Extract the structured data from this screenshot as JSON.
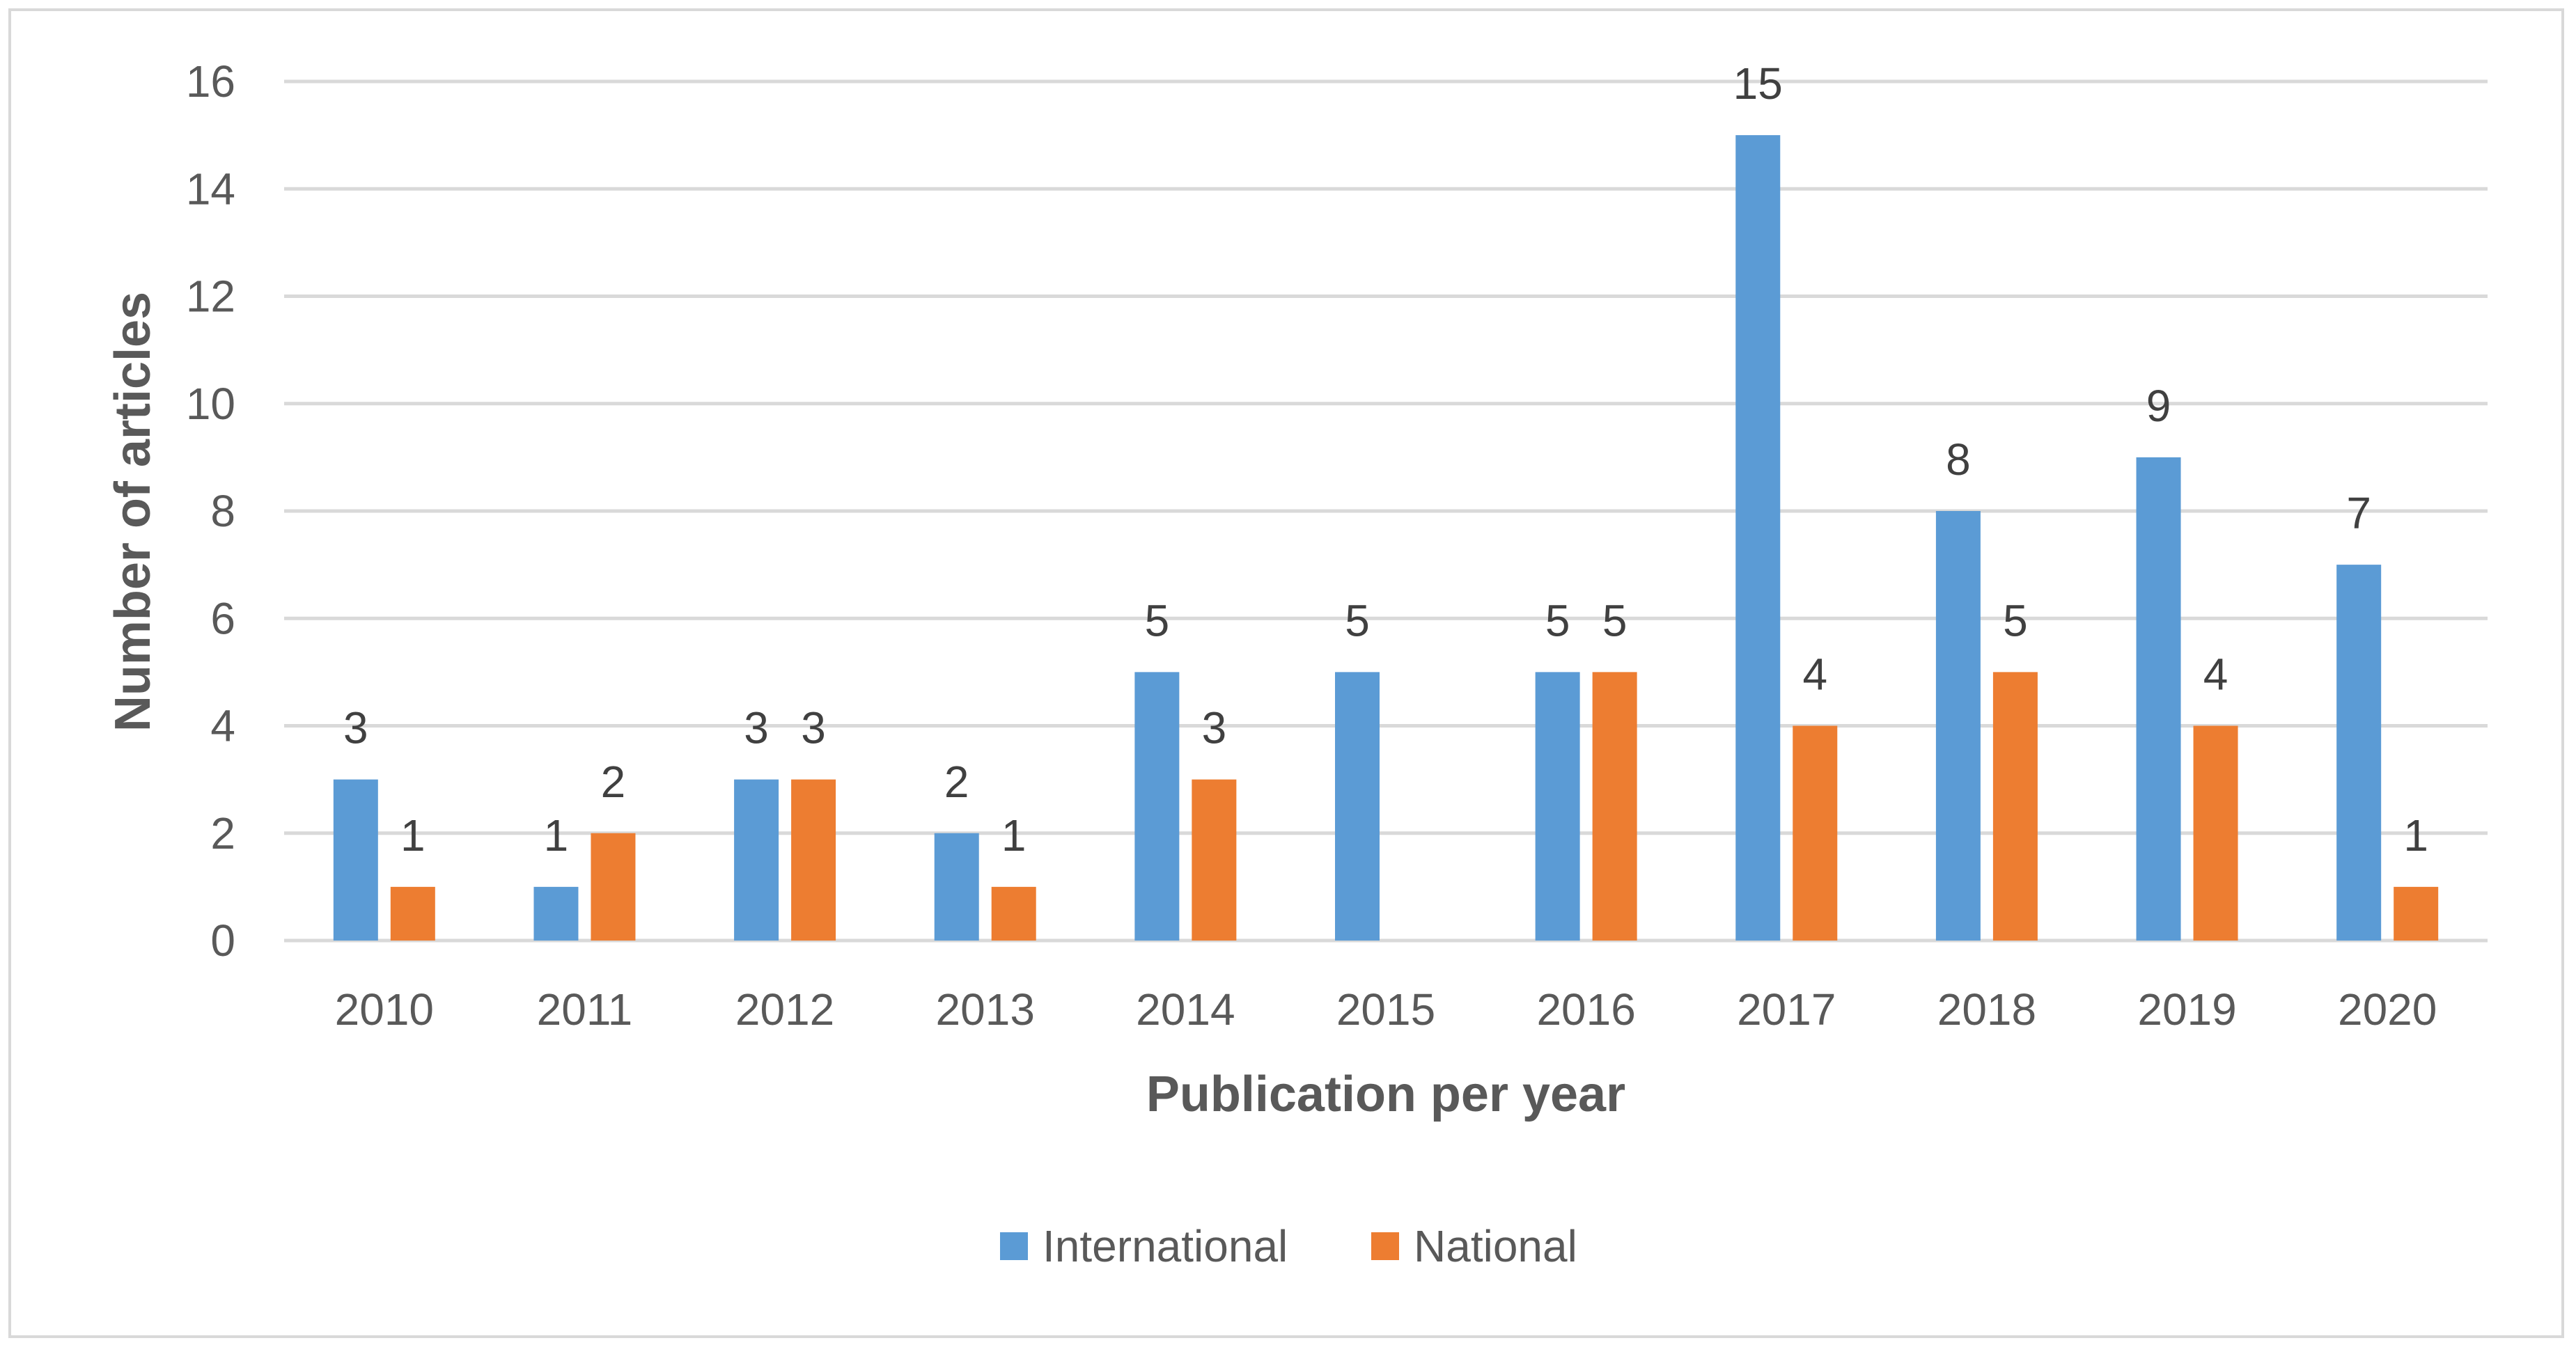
{
  "chart_data": {
    "type": "bar",
    "title": "",
    "xlabel": "Publication per year",
    "ylabel": "Number of articles",
    "categories": [
      "2010",
      "2011",
      "2012",
      "2013",
      "2014",
      "2015",
      "2016",
      "2017",
      "2018",
      "2019",
      "2020"
    ],
    "series": [
      {
        "name": "International",
        "color": "#5b9bd5",
        "values": [
          3,
          1,
          3,
          2,
          5,
          5,
          5,
          15,
          8,
          9,
          7
        ]
      },
      {
        "name": "National",
        "color": "#ed7d31",
        "values": [
          1,
          2,
          3,
          1,
          3,
          null,
          5,
          4,
          5,
          4,
          1
        ]
      }
    ],
    "ylim": [
      0,
      16
    ],
    "yticks": [
      0,
      2,
      4,
      6,
      8,
      10,
      12,
      14,
      16
    ],
    "grid": true,
    "legend_position": "bottom-center",
    "data_labels": true
  }
}
